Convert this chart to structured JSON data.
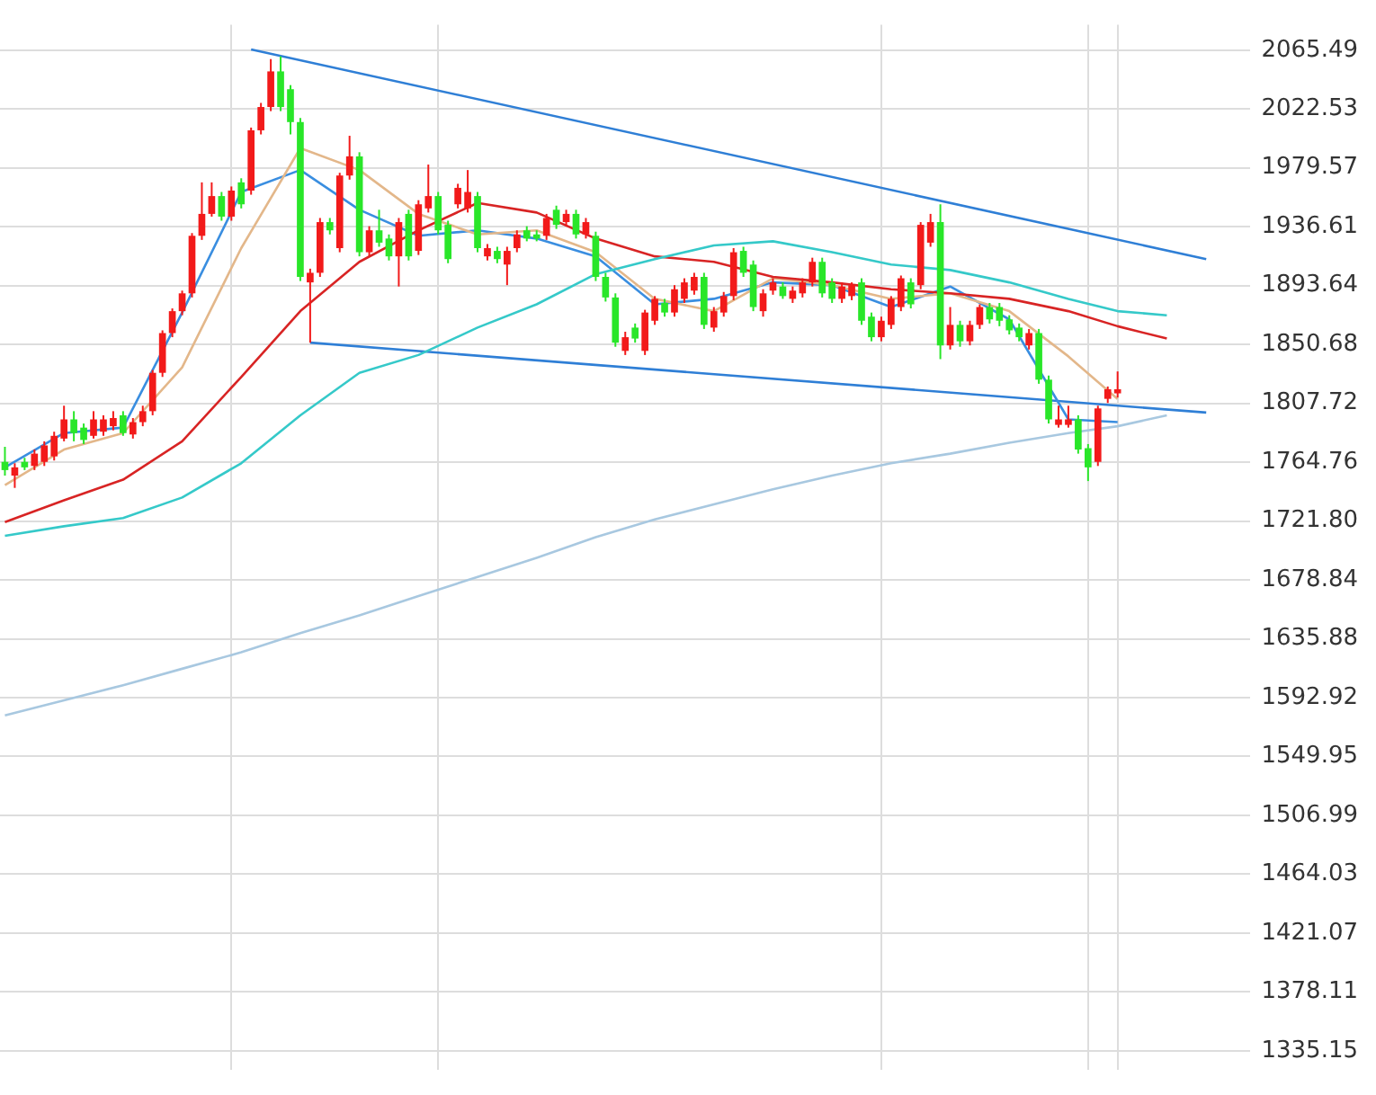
{
  "chart_data": {
    "type": "candlestick",
    "categories": [
      null,
      null,
      null,
      null,
      null,
      null,
      null,
      null,
      null,
      null,
      null,
      null,
      null,
      null,
      null,
      null,
      null,
      null,
      null,
      null,
      null,
      null,
      null,
      null,
      null,
      null,
      null,
      null,
      null,
      null,
      null,
      null,
      null,
      null,
      null,
      null,
      null,
      null,
      null,
      null,
      null,
      null,
      null,
      null,
      null,
      null,
      null,
      null,
      null,
      null,
      null,
      null,
      null,
      null,
      null,
      null,
      null,
      null,
      null,
      null,
      null,
      null,
      null,
      null,
      null,
      null,
      null,
      null,
      null,
      null,
      null,
      null,
      null,
      null,
      null,
      null,
      null,
      null,
      null,
      null,
      null,
      null,
      null,
      null,
      null,
      null,
      null,
      null,
      null,
      null,
      null,
      null,
      null,
      null,
      null,
      null,
      null,
      null,
      null,
      null,
      null,
      null,
      null,
      null,
      null,
      null,
      null,
      null,
      null,
      null,
      null,
      null,
      null,
      null,
      null,
      null,
      null,
      null,
      null,
      null,
      null,
      null,
      null,
      null,
      null,
      null,
      null
    ],
    "ohlc": [
      [
        1765,
        1776,
        1755,
        1759
      ],
      [
        1755,
        1764,
        1746,
        1761
      ],
      [
        1765,
        1768,
        1759,
        1761
      ],
      [
        1762,
        1774,
        1759,
        1771
      ],
      [
        1765,
        1780,
        1762,
        1777
      ],
      [
        1769,
        1787,
        1766,
        1784
      ],
      [
        1782,
        1806,
        1780,
        1796
      ],
      [
        1796,
        1802,
        1780,
        1786
      ],
      [
        1790,
        1793,
        1778,
        1781
      ],
      [
        1784,
        1802,
        1782,
        1796
      ],
      [
        1787,
        1799,
        1784,
        1796
      ],
      [
        1791,
        1802,
        1788,
        1797
      ],
      [
        1799,
        1802,
        1784,
        1786
      ],
      [
        1785,
        1797,
        1782,
        1794
      ],
      [
        1794,
        1806,
        1791,
        1802
      ],
      [
        1802,
        1832,
        1799,
        1830
      ],
      [
        1830,
        1861,
        1827,
        1859
      ],
      [
        1859,
        1877,
        1856,
        1875
      ],
      [
        1875,
        1890,
        1872,
        1888
      ],
      [
        1888,
        1932,
        1885,
        1930
      ],
      [
        1930,
        1969,
        1927,
        1946
      ],
      [
        1946,
        1969,
        1944,
        1959
      ],
      [
        1959,
        1962,
        1941,
        1944
      ],
      [
        1944,
        1966,
        1941,
        1963
      ],
      [
        1969,
        1972,
        1950,
        1953
      ],
      [
        1963,
        2009,
        1960,
        2007
      ],
      [
        2007,
        2027,
        2004,
        2024
      ],
      [
        2024,
        2059,
        2021,
        2050
      ],
      [
        2050,
        2061,
        2021,
        2024
      ],
      [
        2037,
        2040,
        2004,
        2013
      ],
      [
        2013,
        2016,
        1897,
        1900
      ],
      [
        1896,
        1906,
        1852,
        1903
      ],
      [
        1903,
        1943,
        1900,
        1940
      ],
      [
        1940,
        1943,
        1931,
        1934
      ],
      [
        1921,
        1976,
        1918,
        1974
      ],
      [
        1974,
        2003,
        1971,
        1988
      ],
      [
        1988,
        1991,
        1915,
        1918
      ],
      [
        1918,
        1937,
        1915,
        1934
      ],
      [
        1934,
        1949,
        1922,
        1925
      ],
      [
        1928,
        1931,
        1912,
        1915
      ],
      [
        1915,
        1943,
        1893,
        1940
      ],
      [
        1946,
        1949,
        1912,
        1915
      ],
      [
        1919,
        1956,
        1916,
        1953
      ],
      [
        1950,
        1982,
        1947,
        1959
      ],
      [
        1959,
        1962,
        1931,
        1934
      ],
      [
        1938,
        1941,
        1910,
        1913
      ],
      [
        1953,
        1968,
        1950,
        1965
      ],
      [
        1950,
        1978,
        1947,
        1962
      ],
      [
        1959,
        1962,
        1918,
        1921
      ],
      [
        1915,
        1924,
        1912,
        1921
      ],
      [
        1919,
        1922,
        1910,
        1913
      ],
      [
        1909,
        1922,
        1894,
        1919
      ],
      [
        1921,
        1934,
        1918,
        1931
      ],
      [
        1934,
        1937,
        1926,
        1928
      ],
      [
        1931,
        1934,
        1926,
        1928
      ],
      [
        1930,
        1946,
        1927,
        1943
      ],
      [
        1949,
        1952,
        1935,
        1938
      ],
      [
        1940,
        1949,
        1937,
        1946
      ],
      [
        1946,
        1949,
        1928,
        1931
      ],
      [
        1931,
        1943,
        1928,
        1940
      ],
      [
        1930,
        1933,
        1897,
        1900
      ],
      [
        1900,
        1903,
        1882,
        1885
      ],
      [
        1885,
        1888,
        1849,
        1852
      ],
      [
        1846,
        1860,
        1843,
        1856
      ],
      [
        1863,
        1866,
        1852,
        1855
      ],
      [
        1846,
        1876,
        1843,
        1874
      ],
      [
        1868,
        1886,
        1865,
        1884
      ],
      [
        1881,
        1884,
        1871,
        1874
      ],
      [
        1874,
        1894,
        1871,
        1891
      ],
      [
        1884,
        1899,
        1881,
        1896
      ],
      [
        1890,
        1903,
        1887,
        1900
      ],
      [
        1900,
        1903,
        1862,
        1865
      ],
      [
        1863,
        1878,
        1860,
        1875
      ],
      [
        1874,
        1889,
        1871,
        1886
      ],
      [
        1886,
        1921,
        1883,
        1918
      ],
      [
        1919,
        1922,
        1900,
        1903
      ],
      [
        1909,
        1912,
        1875,
        1878
      ],
      [
        1875,
        1891,
        1871,
        1888
      ],
      [
        1890,
        1899,
        1887,
        1896
      ],
      [
        1893,
        1896,
        1884,
        1886
      ],
      [
        1884,
        1893,
        1881,
        1890
      ],
      [
        1888,
        1899,
        1885,
        1896
      ],
      [
        1896,
        1914,
        1893,
        1911
      ],
      [
        1911,
        1914,
        1885,
        1888
      ],
      [
        1896,
        1899,
        1881,
        1884
      ],
      [
        1884,
        1896,
        1881,
        1893
      ],
      [
        1886,
        1896,
        1883,
        1894
      ],
      [
        1896,
        1899,
        1865,
        1868
      ],
      [
        1871,
        1874,
        1853,
        1856
      ],
      [
        1856,
        1871,
        1853,
        1868
      ],
      [
        1865,
        1886,
        1862,
        1884
      ],
      [
        1878,
        1901,
        1875,
        1899
      ],
      [
        1896,
        1899,
        1877,
        1880
      ],
      [
        1894,
        1940,
        1891,
        1938
      ],
      [
        1925,
        1946,
        1922,
        1940
      ],
      [
        1940,
        1953,
        1840,
        1850
      ],
      [
        1850,
        1878,
        1847,
        1865
      ],
      [
        1865,
        1868,
        1849,
        1853
      ],
      [
        1853,
        1868,
        1850,
        1865
      ],
      [
        1865,
        1880,
        1862,
        1878
      ],
      [
        1878,
        1881,
        1866,
        1869
      ],
      [
        1878,
        1881,
        1864,
        1868
      ],
      [
        1869,
        1872,
        1858,
        1861
      ],
      [
        1863,
        1866,
        1853,
        1856
      ],
      [
        1850,
        1862,
        1847,
        1859
      ],
      [
        1859,
        1862,
        1822,
        1825
      ],
      [
        1825,
        1828,
        1793,
        1796
      ],
      [
        1792,
        1806,
        1790,
        1796
      ],
      [
        1792,
        1806,
        1790,
        1796
      ],
      [
        1796,
        1799,
        1771,
        1774
      ],
      [
        1775,
        1778,
        1751,
        1761
      ],
      [
        1765,
        1806,
        1762,
        1804
      ],
      [
        1811,
        1820,
        1808,
        1818
      ],
      [
        1815,
        1831,
        1812,
        1818
      ],
      null,
      null,
      null,
      null,
      null,
      null,
      null,
      null,
      null,
      null,
      null,
      null,
      null
    ],
    "colors": [
      "#29e629",
      "#f21a1a",
      "#29e629",
      "#f21a1a",
      "#f21a1a",
      "#f21a1a",
      "#f21a1a",
      "#29e629",
      "#29e629",
      "#f21a1a",
      "#f21a1a",
      "#f21a1a",
      "#29e629",
      "#f21a1a",
      "#f21a1a",
      "#f21a1a",
      "#f21a1a",
      "#f21a1a",
      "#f21a1a",
      "#f21a1a",
      "#f21a1a",
      "#f21a1a",
      "#29e629",
      "#f21a1a",
      "#29e629",
      "#f21a1a",
      "#f21a1a",
      "#f21a1a",
      "#29e629",
      "#29e629",
      "#29e629",
      "#f21a1a",
      "#f21a1a",
      "#29e629",
      "#f21a1a",
      "#f21a1a",
      "#29e629",
      "#f21a1a",
      "#29e629",
      "#29e629",
      "#f21a1a",
      "#29e629",
      "#f21a1a",
      "#f21a1a",
      "#29e629",
      "#29e629",
      "#f21a1a",
      "#f21a1a",
      "#29e629",
      "#f21a1a",
      "#29e629",
      "#f21a1a",
      "#f21a1a",
      "#29e629",
      "#29e629",
      "#f21a1a",
      "#29e629",
      "#f21a1a",
      "#29e629",
      "#f21a1a",
      "#29e629",
      "#29e629",
      "#29e629",
      "#f21a1a",
      "#29e629",
      "#f21a1a",
      "#f21a1a",
      "#29e629",
      "#f21a1a",
      "#f21a1a",
      "#f21a1a",
      "#29e629",
      "#f21a1a",
      "#f21a1a",
      "#f21a1a",
      "#29e629",
      "#29e629",
      "#f21a1a",
      "#f21a1a",
      "#29e629",
      "#f21a1a",
      "#f21a1a",
      "#f21a1a",
      "#29e629",
      "#29e629",
      "#f21a1a",
      "#f21a1a",
      "#29e629",
      "#29e629",
      "#f21a1a",
      "#f21a1a",
      "#f21a1a",
      "#29e629",
      "#f21a1a",
      "#f21a1a",
      "#29e629",
      "#f21a1a",
      "#29e629",
      "#f21a1a",
      "#f21a1a",
      "#29e629",
      "#29e629",
      "#29e629",
      "#29e629",
      "#f21a1a",
      "#29e629",
      "#29e629",
      "#f21a1a",
      "#f21a1a",
      "#29e629",
      "#29e629",
      "#f21a1a",
      "#f21a1a",
      "#f21a1a",
      null,
      null,
      null,
      null,
      null,
      null,
      null,
      null,
      null,
      null,
      null,
      null,
      null
    ],
    "series": [
      {
        "type": "line",
        "color": "#a8c8e0",
        "values": [
          1580,
          null,
          null,
          null,
          null,
          null,
          1591,
          null,
          null,
          null,
          null,
          null,
          1602,
          null,
          null,
          null,
          null,
          null,
          1614,
          null,
          null,
          null,
          null,
          null,
          1626,
          null,
          null,
          null,
          null,
          null,
          1640,
          null,
          null,
          null,
          null,
          null,
          1653,
          null,
          null,
          null,
          null,
          null,
          1667,
          null,
          null,
          null,
          null,
          null,
          1681,
          null,
          null,
          null,
          null,
          null,
          1695,
          null,
          null,
          null,
          null,
          null,
          1710,
          null,
          null,
          null,
          null,
          null,
          1723,
          null,
          null,
          null,
          null,
          null,
          1734,
          null,
          null,
          null,
          null,
          null,
          1745,
          null,
          null,
          null,
          null,
          null,
          1755,
          null,
          null,
          null,
          null,
          null,
          1764,
          null,
          null,
          null,
          null,
          null,
          1771,
          null,
          null,
          null,
          null,
          null,
          1779,
          null,
          null,
          null,
          null,
          null,
          1786,
          null,
          null,
          null,
          null,
          1791,
          null,
          null,
          null,
          null,
          1799,
          null,
          null,
          null,
          null,
          null,
          null,
          null,
          null
        ]
      },
      {
        "type": "line",
        "color": "#35c9c9",
        "values": [
          1711,
          null,
          null,
          null,
          null,
          null,
          1718,
          null,
          null,
          null,
          null,
          null,
          1724,
          null,
          null,
          null,
          null,
          null,
          1739,
          null,
          null,
          null,
          null,
          null,
          1764,
          null,
          null,
          null,
          null,
          null,
          1799,
          null,
          null,
          null,
          null,
          null,
          1830,
          null,
          null,
          null,
          null,
          null,
          1843,
          null,
          null,
          null,
          null,
          null,
          1863,
          null,
          null,
          null,
          null,
          null,
          1880,
          null,
          null,
          null,
          null,
          null,
          1902,
          null,
          null,
          null,
          null,
          null,
          1913,
          null,
          null,
          null,
          null,
          null,
          1923,
          null,
          null,
          null,
          null,
          null,
          1926,
          null,
          null,
          null,
          null,
          null,
          1918,
          null,
          null,
          null,
          null,
          null,
          1909,
          null,
          null,
          null,
          null,
          null,
          1905,
          null,
          null,
          null,
          null,
          null,
          1896,
          null,
          null,
          null,
          null,
          null,
          1884,
          null,
          null,
          null,
          null,
          1875,
          null,
          null,
          null,
          null,
          1872,
          null,
          null,
          null,
          null,
          null,
          null,
          null,
          null
        ]
      },
      {
        "type": "line",
        "color": "#d82424",
        "values": [
          1721,
          null,
          null,
          null,
          null,
          null,
          1737,
          null,
          null,
          null,
          null,
          null,
          1752,
          null,
          null,
          null,
          null,
          null,
          1780,
          null,
          null,
          null,
          null,
          null,
          1827,
          null,
          null,
          null,
          null,
          null,
          1875,
          null,
          null,
          null,
          null,
          null,
          1911,
          null,
          null,
          null,
          null,
          null,
          1934,
          null,
          null,
          null,
          null,
          null,
          1954,
          null,
          null,
          null,
          null,
          null,
          1947,
          null,
          null,
          null,
          null,
          null,
          1928,
          null,
          null,
          null,
          null,
          null,
          1915,
          null,
          null,
          null,
          null,
          null,
          1911,
          null,
          null,
          null,
          null,
          null,
          1900,
          null,
          null,
          null,
          null,
          null,
          1896,
          null,
          null,
          null,
          null,
          null,
          1891,
          null,
          null,
          null,
          null,
          null,
          1888,
          null,
          null,
          null,
          null,
          null,
          1884,
          null,
          null,
          null,
          null,
          null,
          1875,
          null,
          null,
          null,
          null,
          1864,
          null,
          null,
          null,
          null,
          1855,
          null,
          null,
          null,
          null,
          null,
          null,
          null,
          null
        ]
      },
      {
        "type": "line",
        "color": "#e3b78a",
        "values": [
          1748,
          null,
          null,
          null,
          null,
          null,
          1774,
          null,
          null,
          null,
          null,
          null,
          1786,
          null,
          null,
          null,
          null,
          null,
          1834,
          null,
          null,
          null,
          null,
          null,
          1921,
          null,
          null,
          null,
          null,
          null,
          1994,
          null,
          null,
          null,
          null,
          null,
          1978,
          null,
          null,
          null,
          null,
          null,
          1946,
          null,
          null,
          null,
          null,
          null,
          1931,
          null,
          null,
          null,
          null,
          null,
          1934,
          null,
          null,
          null,
          null,
          null,
          1918,
          null,
          null,
          null,
          null,
          null,
          1884,
          null,
          null,
          null,
          null,
          null,
          1875,
          null,
          null,
          null,
          null,
          null,
          1899,
          null,
          null,
          null,
          null,
          null,
          1894,
          null,
          null,
          null,
          null,
          null,
          1884,
          null,
          null,
          null,
          null,
          null,
          1888,
          null,
          null,
          null,
          null,
          null,
          1875,
          null,
          null,
          null,
          null,
          null,
          1842,
          null,
          null,
          null,
          null,
          1811,
          null,
          null,
          null,
          null,
          null,
          null,
          null,
          null,
          null,
          null,
          null,
          null,
          null
        ]
      },
      {
        "type": "line",
        "color": "#3a8ee0",
        "values": [
          1761,
          null,
          null,
          null,
          null,
          null,
          1786,
          null,
          null,
          null,
          null,
          null,
          1790,
          null,
          null,
          null,
          null,
          null,
          1874,
          null,
          null,
          null,
          null,
          null,
          1962,
          null,
          null,
          null,
          null,
          null,
          1978,
          null,
          null,
          null,
          null,
          null,
          1949,
          null,
          null,
          null,
          null,
          null,
          1930,
          null,
          null,
          null,
          null,
          null,
          1934,
          null,
          null,
          null,
          null,
          null,
          1928,
          null,
          null,
          null,
          null,
          null,
          1915,
          null,
          null,
          null,
          null,
          null,
          1880,
          null,
          null,
          null,
          null,
          null,
          1884,
          null,
          null,
          null,
          null,
          null,
          1896,
          null,
          null,
          null,
          null,
          null,
          1894,
          null,
          null,
          null,
          null,
          null,
          1878,
          null,
          null,
          null,
          null,
          null,
          1893,
          null,
          null,
          null,
          null,
          null,
          1869,
          null,
          null,
          null,
          null,
          null,
          1796,
          null,
          null,
          null,
          null,
          1794,
          null,
          null,
          null,
          null,
          null,
          null,
          null,
          null,
          null,
          null,
          null,
          null,
          null
        ]
      },
      {
        "type": "line",
        "color": "#2f7fd6",
        "values": [
          null,
          null,
          null,
          null,
          null,
          null,
          null,
          null,
          null,
          null,
          null,
          null,
          null,
          null,
          null,
          null,
          null,
          null,
          null,
          null,
          null,
          null,
          null,
          null,
          null,
          2066,
          null,
          null,
          null,
          null,
          null,
          null,
          null,
          null,
          null,
          null,
          null,
          null,
          null,
          null,
          null,
          null,
          null,
          null,
          null,
          null,
          null,
          null,
          null,
          null,
          null,
          null,
          null,
          null,
          null,
          null,
          null,
          null,
          null,
          null,
          null,
          null,
          null,
          null,
          null,
          null,
          null,
          null,
          null,
          null,
          null,
          null,
          null,
          null,
          null,
          null,
          null,
          null,
          null,
          null,
          null,
          null,
          null,
          null,
          null,
          null,
          null,
          null,
          null,
          null,
          null,
          null,
          null,
          null,
          null,
          null,
          null,
          null,
          null,
          null,
          null,
          null,
          null,
          null,
          null,
          null,
          null,
          null,
          null,
          null,
          null,
          null,
          null,
          null,
          null,
          null,
          null,
          null,
          null,
          null,
          null,
          null,
          1913,
          null,
          null,
          null,
          null
        ]
      },
      {
        "type": "line",
        "color": "#2f7fd6",
        "values": [
          null,
          null,
          null,
          null,
          null,
          null,
          null,
          null,
          null,
          null,
          null,
          null,
          null,
          null,
          null,
          null,
          null,
          null,
          null,
          null,
          null,
          null,
          null,
          null,
          null,
          null,
          null,
          null,
          null,
          null,
          null,
          1852,
          null,
          null,
          null,
          null,
          null,
          null,
          null,
          null,
          null,
          null,
          null,
          null,
          null,
          null,
          null,
          null,
          null,
          null,
          null,
          null,
          null,
          null,
          null,
          null,
          null,
          null,
          null,
          null,
          null,
          null,
          null,
          null,
          null,
          null,
          null,
          null,
          null,
          null,
          null,
          null,
          null,
          null,
          null,
          null,
          null,
          null,
          null,
          null,
          null,
          null,
          null,
          null,
          null,
          null,
          null,
          null,
          null,
          null,
          null,
          null,
          null,
          null,
          null,
          null,
          null,
          null,
          null,
          null,
          null,
          null,
          null,
          null,
          null,
          null,
          null,
          null,
          null,
          null,
          null,
          null,
          null,
          null,
          null,
          null,
          null,
          null,
          null,
          null,
          null,
          null,
          1801,
          null,
          null,
          null,
          null
        ]
      }
    ],
    "ylim": [
      1321,
      2084
    ],
    "yticks": [
      1335.15,
      1378.11,
      1421.07,
      1464.03,
      1506.99,
      1549.95,
      1592.92,
      1635.88,
      1678.84,
      {
        "value": 1721.8,
        "label": "1721.80"
      },
      1764.76,
      1807.72,
      1850.68,
      1893.64,
      1936.61,
      1979.57,
      2022.53,
      2065.49
    ],
    "grid": true,
    "tick_labels": "y",
    "marker": "none"
  }
}
